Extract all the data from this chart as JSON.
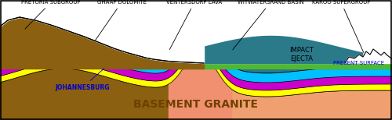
{
  "colors": {
    "basement": "#F0A070",
    "pretoria_brown": "#8B6010",
    "teal": "#2A7A8A",
    "cyan_layer": "#00C0FF",
    "magenta_layer": "#CC00CC",
    "yellow_layer": "#FFFF00",
    "pink_dome": "#F09070",
    "green_strip": "#50B830",
    "white": "#FFFFFF",
    "black": "#000000",
    "blue": "#0000CC"
  },
  "labels": {
    "pretoria": "PRETORIA SUBGROUP",
    "ghaap": "GHAAP DOLOMITE",
    "ventersdorp": "VENTERSDORP LAVA",
    "witwatersrand": "WITWATERSRAND BASIN",
    "karoo": "KAROO SUPERGROUP",
    "impact_ejecta": "IMPACT\nEJECTA",
    "present_surface": "PRESENT SURFACE",
    "johannesburg": "JOHANNESBURG",
    "basement": "BASEMENT GRANITE"
  }
}
